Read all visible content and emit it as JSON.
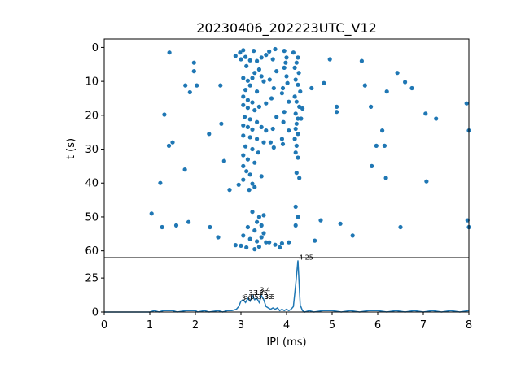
{
  "chart_data": [
    {
      "type": "scatter",
      "title": "20230406_202223UTC_V12",
      "ylabel": "t (s)",
      "xlim": [
        0,
        8
      ],
      "ylim": [
        62,
        -2.5
      ],
      "y_inverted": true,
      "yticks": [
        0,
        10,
        20,
        30,
        40,
        50,
        60
      ],
      "color": "#1f77b4",
      "points": [
        [
          1.43,
          1.5
        ],
        [
          1.97,
          4.5
        ],
        [
          1.97,
          7.0
        ],
        [
          1.78,
          11.2
        ],
        [
          2.03,
          11.2
        ],
        [
          1.88,
          13.2
        ],
        [
          2.55,
          11.2
        ],
        [
          1.32,
          19.8
        ],
        [
          2.3,
          25.5
        ],
        [
          2.57,
          22.5
        ],
        [
          1.42,
          29.0
        ],
        [
          1.5,
          28.0
        ],
        [
          1.77,
          36.0
        ],
        [
          2.63,
          33.5
        ],
        [
          1.23,
          40.0
        ],
        [
          2.75,
          42.0
        ],
        [
          1.04,
          49.0
        ],
        [
          1.27,
          53.0
        ],
        [
          1.58,
          52.5
        ],
        [
          1.85,
          51.5
        ],
        [
          2.32,
          53.0
        ],
        [
          2.5,
          56.0
        ],
        [
          2.88,
          58.3
        ],
        [
          2.88,
          2.5
        ],
        [
          2.98,
          1.5
        ],
        [
          3.0,
          3.5
        ],
        [
          3.05,
          0.8
        ],
        [
          3.1,
          2.8
        ],
        [
          3.12,
          5.5
        ],
        [
          3.2,
          3.8
        ],
        [
          3.28,
          1.0
        ],
        [
          3.35,
          4.0
        ],
        [
          3.45,
          3.0
        ],
        [
          3.55,
          2.2
        ],
        [
          3.4,
          6.5
        ],
        [
          3.3,
          7.5
        ],
        [
          3.05,
          9.0
        ],
        [
          3.15,
          9.8
        ],
        [
          3.25,
          9.0
        ],
        [
          3.45,
          8.5
        ],
        [
          3.5,
          10.0
        ],
        [
          3.2,
          11.2
        ],
        [
          3.1,
          12.5
        ],
        [
          3.35,
          13.0
        ],
        [
          3.05,
          14.5
        ],
        [
          3.15,
          15.5
        ],
        [
          3.25,
          16.2
        ],
        [
          3.05,
          17.0
        ],
        [
          3.15,
          17.8
        ],
        [
          3.3,
          18.5
        ],
        [
          3.4,
          17.5
        ],
        [
          3.55,
          16.5
        ],
        [
          3.08,
          20.5
        ],
        [
          3.2,
          21.2
        ],
        [
          3.35,
          22.0
        ],
        [
          3.05,
          23.0
        ],
        [
          3.15,
          23.5
        ],
        [
          3.25,
          24.2
        ],
        [
          3.45,
          23.5
        ],
        [
          3.55,
          24.5
        ],
        [
          3.05,
          26.0
        ],
        [
          3.2,
          26.5
        ],
        [
          3.35,
          27.0
        ],
        [
          3.5,
          28.0
        ],
        [
          3.1,
          29.2
        ],
        [
          3.25,
          30.0
        ],
        [
          3.38,
          31.0
        ],
        [
          3.05,
          31.8
        ],
        [
          3.15,
          33.0
        ],
        [
          3.3,
          34.0
        ],
        [
          3.05,
          35.0
        ],
        [
          3.12,
          36.5
        ],
        [
          3.2,
          37.5
        ],
        [
          3.45,
          38.0
        ],
        [
          3.05,
          39.0
        ],
        [
          3.25,
          40.2
        ],
        [
          3.3,
          41.2
        ],
        [
          3.18,
          42.0
        ],
        [
          2.95,
          40.5
        ],
        [
          3.25,
          48.5
        ],
        [
          3.4,
          50.0
        ],
        [
          3.5,
          49.5
        ],
        [
          3.35,
          51.5
        ],
        [
          3.45,
          52.5
        ],
        [
          3.15,
          53.0
        ],
        [
          3.3,
          54.0
        ],
        [
          3.5,
          54.8
        ],
        [
          3.05,
          55.5
        ],
        [
          3.2,
          56.5
        ],
        [
          3.35,
          57.2
        ],
        [
          3.45,
          56.0
        ],
        [
          3.55,
          57.5
        ],
        [
          3.0,
          58.5
        ],
        [
          3.12,
          59.0
        ],
        [
          3.3,
          59.5
        ],
        [
          3.4,
          58.8
        ],
        [
          3.62,
          1.2
        ],
        [
          3.75,
          0.5
        ],
        [
          3.7,
          3.5
        ],
        [
          3.78,
          7.0
        ],
        [
          3.63,
          9.5
        ],
        [
          3.72,
          12.0
        ],
        [
          3.67,
          15.0
        ],
        [
          3.78,
          20.5
        ],
        [
          3.7,
          24.0
        ],
        [
          3.65,
          28.0
        ],
        [
          3.72,
          29.5
        ],
        [
          3.62,
          57.5
        ],
        [
          3.75,
          58.2
        ],
        [
          3.85,
          59.0
        ],
        [
          3.9,
          57.8
        ],
        [
          3.95,
          1.0
        ],
        [
          4.0,
          3.0
        ],
        [
          3.98,
          4.5
        ],
        [
          3.95,
          6.0
        ],
        [
          4.0,
          8.5
        ],
        [
          4.02,
          10.5
        ],
        [
          3.92,
          12.0
        ],
        [
          3.9,
          13.5
        ],
        [
          4.05,
          16.0
        ],
        [
          3.95,
          19.0
        ],
        [
          3.93,
          22.0
        ],
        [
          4.05,
          24.5
        ],
        [
          3.9,
          27.0
        ],
        [
          3.92,
          28.5
        ],
        [
          4.05,
          57.5
        ],
        [
          4.15,
          1.5
        ],
        [
          4.25,
          3.0
        ],
        [
          4.22,
          4.5
        ],
        [
          4.18,
          6.0
        ],
        [
          4.27,
          7.5
        ],
        [
          4.2,
          9.5
        ],
        [
          4.25,
          11.0
        ],
        [
          4.3,
          13.0
        ],
        [
          4.18,
          14.5
        ],
        [
          4.22,
          16.0
        ],
        [
          4.28,
          17.5
        ],
        [
          4.2,
          19.5
        ],
        [
          4.25,
          21.0
        ],
        [
          4.22,
          22.5
        ],
        [
          4.2,
          24.0
        ],
        [
          4.25,
          25.5
        ],
        [
          4.18,
          27.0
        ],
        [
          4.22,
          29.0
        ],
        [
          4.2,
          31.0
        ],
        [
          4.25,
          32.5
        ],
        [
          4.22,
          37.0
        ],
        [
          4.28,
          38.5
        ],
        [
          4.2,
          47.0
        ],
        [
          4.25,
          50.0
        ],
        [
          4.2,
          52.5
        ],
        [
          4.35,
          18.0
        ],
        [
          4.32,
          21.0
        ],
        [
          4.55,
          12.0
        ],
        [
          4.62,
          57.0
        ],
        [
          4.75,
          51.0
        ],
        [
          4.82,
          10.5
        ],
        [
          4.95,
          3.5
        ],
        [
          5.1,
          17.5
        ],
        [
          5.1,
          19.0
        ],
        [
          5.18,
          52.0
        ],
        [
          5.45,
          55.5
        ],
        [
          5.65,
          4.0
        ],
        [
          5.72,
          11.2
        ],
        [
          5.85,
          17.5
        ],
        [
          5.87,
          35.0
        ],
        [
          5.97,
          29.0
        ],
        [
          6.1,
          24.5
        ],
        [
          6.15,
          29.0
        ],
        [
          6.18,
          38.5
        ],
        [
          6.2,
          13.0
        ],
        [
          6.43,
          7.5
        ],
        [
          6.5,
          53.0
        ],
        [
          6.6,
          10.2
        ],
        [
          6.75,
          12.0
        ],
        [
          7.05,
          19.5
        ],
        [
          7.07,
          39.5
        ],
        [
          7.28,
          21.0
        ],
        [
          7.95,
          16.5
        ],
        [
          7.97,
          51.0
        ],
        [
          8.0,
          24.5
        ],
        [
          8.0,
          53.0
        ]
      ]
    },
    {
      "type": "line",
      "xlabel": "IPI (ms)",
      "xlim": [
        0,
        8
      ],
      "ylim": [
        0,
        40
      ],
      "xticks": [
        0,
        1,
        2,
        3,
        4,
        5,
        6,
        7,
        8
      ],
      "yticks": [
        0,
        25
      ],
      "color": "#1f77b4",
      "x": [
        0,
        1.0,
        1.1,
        1.2,
        1.3,
        1.5,
        1.6,
        1.8,
        1.9,
        2.0,
        2.05,
        2.2,
        2.3,
        2.5,
        2.6,
        2.7,
        2.8,
        2.9,
        2.95,
        3.0,
        3.05,
        3.1,
        3.15,
        3.2,
        3.25,
        3.3,
        3.35,
        3.4,
        3.45,
        3.5,
        3.55,
        3.6,
        3.65,
        3.7,
        3.75,
        3.8,
        3.85,
        3.9,
        3.95,
        4.0,
        4.05,
        4.1,
        4.15,
        4.2,
        4.25,
        4.3,
        4.35,
        4.4,
        4.5,
        4.6,
        4.8,
        5.0,
        5.2,
        5.4,
        5.6,
        5.8,
        6.0,
        6.2,
        6.4,
        6.6,
        6.8,
        7.0,
        7.2,
        7.4,
        7.6,
        7.8,
        8.0
      ],
      "y": [
        0,
        0,
        1,
        0,
        1,
        1,
        0,
        1,
        1,
        1,
        0,
        1,
        0,
        1,
        0,
        1,
        1,
        2,
        4,
        8,
        9,
        7,
        10,
        8,
        12,
        9,
        10,
        7,
        12,
        9,
        4,
        3,
        2,
        3,
        2,
        3,
        1,
        2,
        1,
        2,
        1,
        2,
        4,
        20,
        38,
        5,
        1,
        0,
        1,
        0,
        1,
        1,
        0,
        1,
        0,
        1,
        1,
        0,
        1,
        0,
        1,
        0,
        1,
        0,
        1,
        0,
        1
      ],
      "peak_labels": [
        {
          "x": 3.0,
          "y": 8,
          "text": "3.0"
        },
        {
          "x": 3.05,
          "y": 9,
          "text": "3.05"
        },
        {
          "x": 3.15,
          "y": 12,
          "text": "3.15"
        },
        {
          "x": 3.25,
          "y": 12,
          "text": "3.25"
        },
        {
          "x": 3.35,
          "y": 9,
          "text": "3.35"
        },
        {
          "x": 3.4,
          "y": 14,
          "text": "3.4"
        },
        {
          "x": 3.5,
          "y": 9,
          "text": "3.5"
        },
        {
          "x": 4.25,
          "y": 38,
          "text": "4.25"
        }
      ]
    }
  ]
}
